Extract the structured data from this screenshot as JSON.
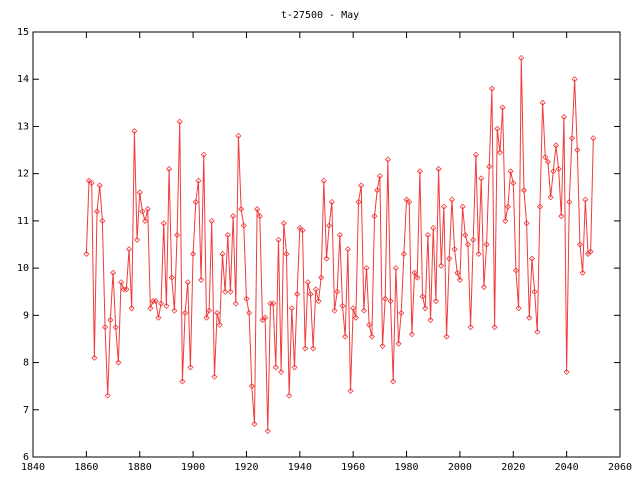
{
  "chart_data": {
    "type": "line",
    "title": "t-27500 - May",
    "x": [
      1860,
      1861,
      1862,
      1863,
      1864,
      1865,
      1866,
      1867,
      1868,
      1869,
      1870,
      1871,
      1872,
      1873,
      1874,
      1875,
      1876,
      1877,
      1878,
      1879,
      1880,
      1881,
      1882,
      1883,
      1884,
      1885,
      1886,
      1887,
      1888,
      1889,
      1890,
      1891,
      1892,
      1893,
      1894,
      1895,
      1896,
      1897,
      1898,
      1899,
      1900,
      1901,
      1902,
      1903,
      1904,
      1905,
      1906,
      1907,
      1908,
      1909,
      1910,
      1911,
      1912,
      1913,
      1914,
      1915,
      1916,
      1917,
      1918,
      1919,
      1920,
      1921,
      1922,
      1923,
      1924,
      1925,
      1926,
      1927,
      1928,
      1929,
      1930,
      1931,
      1932,
      1933,
      1934,
      1935,
      1936,
      1937,
      1938,
      1939,
      1940,
      1941,
      1942,
      1943,
      1944,
      1945,
      1946,
      1947,
      1948,
      1949,
      1950,
      1951,
      1952,
      1953,
      1954,
      1955,
      1956,
      1957,
      1958,
      1959,
      1960,
      1961,
      1962,
      1963,
      1964,
      1965,
      1966,
      1967,
      1968,
      1969,
      1970,
      1971,
      1972,
      1973,
      1974,
      1975,
      1976,
      1977,
      1978,
      1979,
      1980,
      1981,
      1982,
      1983,
      1984,
      1985,
      1986,
      1987,
      1988,
      1989,
      1990,
      1991,
      1992,
      1993,
      1994,
      1995,
      1996,
      1997,
      1998,
      1999,
      2000,
      2001,
      2002,
      2003,
      2004,
      2005,
      2006,
      2007,
      2008,
      2009,
      2010,
      2011,
      2012,
      2013,
      2014,
      2015,
      2016,
      2017,
      2018,
      2019,
      2020,
      2021,
      2022,
      2023,
      2024,
      2025,
      2026,
      2027,
      2028,
      2029,
      2030,
      2031,
      2032,
      2033,
      2034,
      2035,
      2036,
      2037,
      2038,
      2039,
      2040,
      2041,
      2042,
      2043,
      2044,
      2045,
      2046,
      2047,
      2048,
      2049,
      2050
    ],
    "series": [
      {
        "color": "#f03c3c",
        "values": [
          10.3,
          11.85,
          11.8,
          8.1,
          11.2,
          11.75,
          11.0,
          8.75,
          7.3,
          8.9,
          9.9,
          8.75,
          8.0,
          9.7,
          9.55,
          9.55,
          10.4,
          9.15,
          12.9,
          10.6,
          11.6,
          11.2,
          11.0,
          11.25,
          9.15,
          9.3,
          9.3,
          8.95,
          9.25,
          10.95,
          9.2,
          12.1,
          9.8,
          9.1,
          10.7,
          13.1,
          7.6,
          9.05,
          9.7,
          7.9,
          10.3,
          11.4,
          11.85,
          9.75,
          12.4,
          8.95,
          9.1,
          11.0,
          7.7,
          9.05,
          8.8,
          10.3,
          9.5,
          10.7,
          9.5,
          11.1,
          9.25,
          12.8,
          11.25,
          10.9,
          9.35,
          9.05,
          7.5,
          6.7,
          11.25,
          11.1,
          8.9,
          8.95,
          6.55,
          9.25,
          9.25,
          7.9,
          10.6,
          7.8,
          10.95,
          10.3,
          7.3,
          9.15,
          7.9,
          9.45,
          10.85,
          10.8,
          8.3,
          9.7,
          9.45,
          8.3,
          9.55,
          9.3,
          9.8,
          11.85,
          10.2,
          10.9,
          11.4,
          9.1,
          9.5,
          10.7,
          9.2,
          8.55,
          10.4,
          7.4,
          9.15,
          8.95,
          11.4,
          11.75,
          9.1,
          10.0,
          8.8,
          8.55,
          11.1,
          11.65,
          11.95,
          8.35,
          9.35,
          12.3,
          9.3,
          7.6,
          10.0,
          8.4,
          9.05,
          10.3,
          11.45,
          11.4,
          8.6,
          9.9,
          9.8,
          12.05,
          9.4,
          9.15,
          10.7,
          8.9,
          10.85,
          9.3,
          12.1,
          10.05,
          11.3,
          8.55,
          10.2,
          11.45,
          10.4,
          9.9,
          9.75,
          11.3,
          10.7,
          10.5,
          8.75,
          10.6,
          12.4,
          10.3,
          11.9,
          9.6,
          10.5,
          12.15,
          13.8,
          8.75,
          12.95,
          12.45,
          13.4,
          11.0,
          11.3,
          12.05,
          11.8,
          9.95,
          9.15,
          14.45,
          11.65,
          10.95,
          8.95,
          10.2,
          9.5,
          8.65,
          11.3,
          13.5,
          12.35,
          12.25,
          11.5,
          12.05,
          12.6,
          12.1,
          11.1,
          13.2,
          7.8,
          11.4,
          12.75,
          14.0,
          12.5,
          10.5,
          9.9,
          11.45,
          10.3,
          10.35,
          12.75
        ]
      }
    ],
    "xlim": [
      1840,
      2060
    ],
    "xticks": [
      1840,
      1860,
      1880,
      1900,
      1920,
      1940,
      1960,
      1980,
      2000,
      2020,
      2040,
      2060
    ],
    "ylim": [
      6,
      15
    ],
    "yticks": [
      6,
      7,
      8,
      9,
      10,
      11,
      12,
      13,
      14,
      15
    ]
  }
}
